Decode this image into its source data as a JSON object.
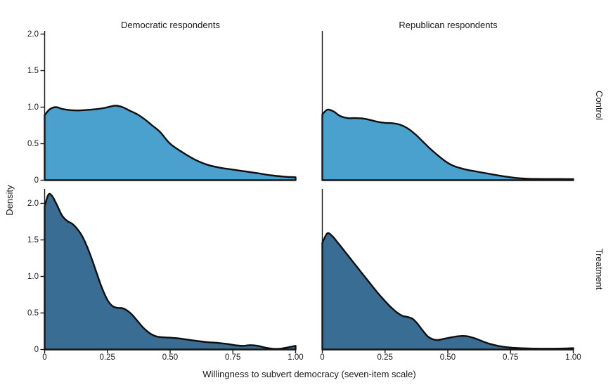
{
  "colors": {
    "control_fill": "#4AA1CE",
    "treatment_fill": "#3A6D94",
    "outline": "#0E0E0E",
    "axis": "#1A1A1A",
    "text": "#1A1A1A"
  },
  "chart_data": {
    "type": "area",
    "kind": "kernel-density-estimate",
    "title": "",
    "xlabel": "Willingness to subvert democracy (seven-item scale)",
    "ylabel": "Density",
    "col_facets": [
      "Democratic respondents",
      "Republican respondents"
    ],
    "row_facets": [
      "Control",
      "Treatment"
    ],
    "xlim": [
      0,
      1
    ],
    "ylim": [
      0,
      2
    ],
    "grid": "off",
    "legend": "none",
    "x_ticks": {
      "values": [
        0,
        0.25,
        0.5,
        0.75,
        1
      ],
      "labels": [
        "0",
        "0.25",
        "0.50",
        "0.75",
        "1.00"
      ]
    },
    "y_ticks": {
      "values": [
        0,
        0.5,
        1,
        1.5,
        2
      ],
      "labels": [
        "0",
        "0.5",
        "1.0",
        "1.5",
        "2.0"
      ]
    },
    "series": [
      {
        "row": "Control",
        "col": "Democratic respondents",
        "fill": "#4AA1CE",
        "points": [
          [
            0,
            0.89
          ],
          [
            0.02,
            0.97
          ],
          [
            0.045,
            1.0
          ],
          [
            0.07,
            0.975
          ],
          [
            0.1,
            0.96
          ],
          [
            0.13,
            0.955
          ],
          [
            0.16,
            0.96
          ],
          [
            0.2,
            0.97
          ],
          [
            0.24,
            0.99
          ],
          [
            0.28,
            1.02
          ],
          [
            0.31,
            1.0
          ],
          [
            0.34,
            0.95
          ],
          [
            0.37,
            0.9
          ],
          [
            0.4,
            0.83
          ],
          [
            0.43,
            0.745
          ],
          [
            0.46,
            0.66
          ],
          [
            0.5,
            0.5
          ],
          [
            0.55,
            0.38
          ],
          [
            0.6,
            0.28
          ],
          [
            0.65,
            0.21
          ],
          [
            0.7,
            0.17
          ],
          [
            0.75,
            0.145
          ],
          [
            0.8,
            0.12
          ],
          [
            0.85,
            0.095
          ],
          [
            0.9,
            0.067
          ],
          [
            0.95,
            0.05
          ],
          [
            1.0,
            0.04
          ]
        ]
      },
      {
        "row": "Control",
        "col": "Republican respondents",
        "fill": "#4AA1CE",
        "points": [
          [
            0,
            0.9
          ],
          [
            0.02,
            0.965
          ],
          [
            0.045,
            0.94
          ],
          [
            0.07,
            0.88
          ],
          [
            0.1,
            0.85
          ],
          [
            0.13,
            0.85
          ],
          [
            0.16,
            0.845
          ],
          [
            0.19,
            0.825
          ],
          [
            0.22,
            0.8
          ],
          [
            0.25,
            0.785
          ],
          [
            0.28,
            0.78
          ],
          [
            0.31,
            0.76
          ],
          [
            0.34,
            0.71
          ],
          [
            0.37,
            0.63
          ],
          [
            0.4,
            0.53
          ],
          [
            0.43,
            0.43
          ],
          [
            0.46,
            0.34
          ],
          [
            0.49,
            0.26
          ],
          [
            0.52,
            0.2
          ],
          [
            0.55,
            0.165
          ],
          [
            0.58,
            0.14
          ],
          [
            0.62,
            0.115
          ],
          [
            0.66,
            0.09
          ],
          [
            0.7,
            0.065
          ],
          [
            0.74,
            0.045
          ],
          [
            0.78,
            0.028
          ],
          [
            0.82,
            0.02
          ],
          [
            0.86,
            0.017
          ],
          [
            0.9,
            0.016
          ],
          [
            0.95,
            0.016
          ],
          [
            1.0,
            0.015
          ]
        ]
      },
      {
        "row": "Treatment",
        "col": "Democratic respondents",
        "fill": "#3A6D94",
        "points": [
          [
            0,
            1.96
          ],
          [
            0.015,
            2.12
          ],
          [
            0.03,
            2.1
          ],
          [
            0.05,
            1.97
          ],
          [
            0.07,
            1.83
          ],
          [
            0.09,
            1.76
          ],
          [
            0.11,
            1.72
          ],
          [
            0.13,
            1.65
          ],
          [
            0.15,
            1.55
          ],
          [
            0.17,
            1.4
          ],
          [
            0.19,
            1.22
          ],
          [
            0.21,
            1.02
          ],
          [
            0.23,
            0.83
          ],
          [
            0.25,
            0.68
          ],
          [
            0.27,
            0.595
          ],
          [
            0.29,
            0.57
          ],
          [
            0.31,
            0.565
          ],
          [
            0.33,
            0.53
          ],
          [
            0.35,
            0.47
          ],
          [
            0.37,
            0.39
          ],
          [
            0.39,
            0.31
          ],
          [
            0.41,
            0.245
          ],
          [
            0.43,
            0.2
          ],
          [
            0.45,
            0.175
          ],
          [
            0.48,
            0.165
          ],
          [
            0.51,
            0.16
          ],
          [
            0.54,
            0.15
          ],
          [
            0.57,
            0.135
          ],
          [
            0.61,
            0.115
          ],
          [
            0.65,
            0.1
          ],
          [
            0.69,
            0.09
          ],
          [
            0.73,
            0.075
          ],
          [
            0.76,
            0.058
          ],
          [
            0.79,
            0.05
          ],
          [
            0.82,
            0.06
          ],
          [
            0.85,
            0.05
          ],
          [
            0.88,
            0.025
          ],
          [
            0.91,
            0.01
          ],
          [
            0.94,
            0.012
          ],
          [
            0.97,
            0.03
          ],
          [
            1.0,
            0.05
          ]
        ]
      },
      {
        "row": "Treatment",
        "col": "Republican respondents",
        "fill": "#3A6D94",
        "points": [
          [
            0,
            1.46
          ],
          [
            0.02,
            1.59
          ],
          [
            0.04,
            1.55
          ],
          [
            0.06,
            1.47
          ],
          [
            0.09,
            1.34
          ],
          [
            0.12,
            1.21
          ],
          [
            0.15,
            1.08
          ],
          [
            0.18,
            0.95
          ],
          [
            0.21,
            0.82
          ],
          [
            0.24,
            0.7
          ],
          [
            0.27,
            0.59
          ],
          [
            0.3,
            0.5
          ],
          [
            0.32,
            0.46
          ],
          [
            0.34,
            0.445
          ],
          [
            0.36,
            0.42
          ],
          [
            0.38,
            0.35
          ],
          [
            0.4,
            0.26
          ],
          [
            0.42,
            0.18
          ],
          [
            0.44,
            0.14
          ],
          [
            0.46,
            0.13
          ],
          [
            0.49,
            0.15
          ],
          [
            0.52,
            0.17
          ],
          [
            0.55,
            0.185
          ],
          [
            0.58,
            0.18
          ],
          [
            0.61,
            0.15
          ],
          [
            0.64,
            0.11
          ],
          [
            0.67,
            0.075
          ],
          [
            0.7,
            0.05
          ],
          [
            0.74,
            0.03
          ],
          [
            0.78,
            0.02
          ],
          [
            0.82,
            0.015
          ],
          [
            0.87,
            0.012
          ],
          [
            0.92,
            0.012
          ],
          [
            0.96,
            0.013
          ],
          [
            1.0,
            0.018
          ]
        ]
      }
    ]
  }
}
